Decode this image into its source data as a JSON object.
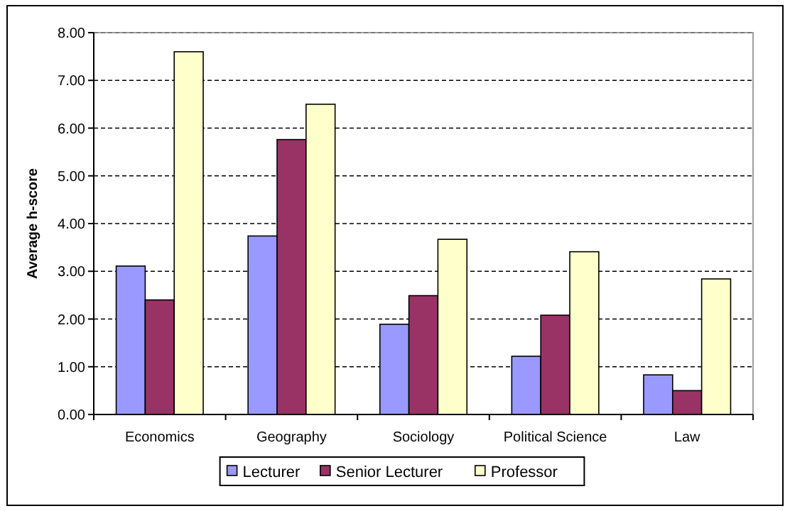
{
  "chart_data": {
    "type": "bar",
    "ylabel": "Average h-score",
    "categories": [
      "Economics",
      "Geography",
      "Sociology",
      "Political Science",
      "Law"
    ],
    "series": [
      {
        "name": "Lecturer",
        "color": "#9999ff",
        "values": [
          3.11,
          3.74,
          1.89,
          1.22,
          0.83
        ]
      },
      {
        "name": "Senior Lecturer",
        "color": "#993366",
        "values": [
          2.4,
          5.76,
          2.49,
          2.08,
          0.5
        ]
      },
      {
        "name": "Professor",
        "color": "#ffffcc",
        "values": [
          7.6,
          6.5,
          3.67,
          3.41,
          2.84
        ]
      }
    ],
    "ylim": [
      0,
      8
    ],
    "yticks": [
      {
        "value": 0,
        "label": "0.00"
      },
      {
        "value": 1,
        "label": "1.00"
      },
      {
        "value": 2,
        "label": "2.00"
      },
      {
        "value": 3,
        "label": "3.00"
      },
      {
        "value": 4,
        "label": "4.00"
      },
      {
        "value": 5,
        "label": "5.00"
      },
      {
        "value": 6,
        "label": "6.00"
      },
      {
        "value": 7,
        "label": "7.00"
      },
      {
        "value": 8,
        "label": "8.00"
      }
    ],
    "grid": "y",
    "legend": "bottom"
  }
}
